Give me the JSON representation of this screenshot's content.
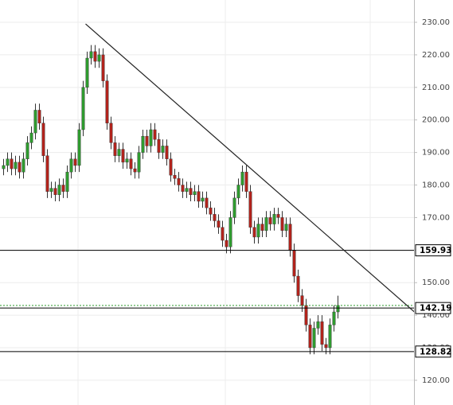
{
  "chart_data": {
    "type": "candlestick",
    "ylim": [
      112.4,
      236.85
    ],
    "yticks": [
      {
        "value": 120,
        "label": "120.00"
      },
      {
        "value": 130,
        "label": "130.00"
      },
      {
        "value": 140,
        "label": "140.00"
      },
      {
        "value": 150,
        "label": "150.00"
      },
      {
        "value": 160,
        "label": "160.00"
      },
      {
        "value": 170,
        "label": "170.00"
      },
      {
        "value": 180,
        "label": "180.00"
      },
      {
        "value": 190,
        "label": "190.00"
      },
      {
        "value": 200,
        "label": "200.00"
      },
      {
        "value": 210,
        "label": "210.00"
      },
      {
        "value": 220,
        "label": "220.00"
      },
      {
        "value": 230,
        "label": "230.00"
      }
    ],
    "grid": true,
    "up_color": "#2f9a2f",
    "down_color": "#b0231c",
    "candles": {
      "open": [
        185,
        186,
        188,
        185,
        187,
        184,
        188,
        193,
        196,
        203,
        199,
        189,
        178,
        179,
        177,
        180,
        178,
        184,
        188,
        186,
        197,
        210,
        219,
        221,
        218,
        220,
        212,
        199,
        193,
        189,
        191,
        187,
        188,
        185,
        184,
        190,
        195,
        192,
        197,
        194,
        190,
        192,
        188,
        183,
        182,
        180,
        178,
        179,
        177,
        178,
        175,
        176,
        173,
        171,
        169,
        167,
        163,
        161,
        170,
        176,
        180,
        184,
        178,
        167,
        164,
        168,
        166,
        170,
        168,
        171,
        170,
        166,
        168,
        160,
        152,
        146,
        143,
        137,
        130,
        136,
        138,
        131,
        130,
        137,
        141
      ],
      "high": [
        188,
        190,
        190,
        189,
        189,
        190,
        195,
        198,
        205,
        205,
        201,
        191,
        181,
        181,
        182,
        182,
        186,
        190,
        190,
        199,
        212,
        221,
        223,
        223,
        222,
        222,
        214,
        201,
        195,
        193,
        193,
        190,
        190,
        187,
        192,
        197,
        197,
        199,
        199,
        196,
        194,
        194,
        190,
        185,
        184,
        182,
        181,
        181,
        180,
        180,
        178,
        178,
        175,
        173,
        171,
        169,
        165,
        172,
        178,
        182,
        186,
        186,
        180,
        169,
        170,
        170,
        172,
        172,
        173,
        173,
        172,
        170,
        170,
        162,
        154,
        148,
        145,
        139,
        138,
        140,
        140,
        133,
        139,
        143,
        146
      ],
      "low": [
        183,
        184,
        183,
        183,
        182,
        182,
        186,
        191,
        194,
        197,
        187,
        176,
        176,
        175,
        175,
        176,
        176,
        182,
        184,
        184,
        195,
        208,
        217,
        216,
        216,
        210,
        197,
        191,
        187,
        187,
        185,
        185,
        183,
        182,
        182,
        188,
        190,
        190,
        192,
        188,
        188,
        186,
        181,
        180,
        178,
        176,
        176,
        175,
        175,
        173,
        173,
        171,
        169,
        167,
        165,
        161,
        159,
        159,
        168,
        174,
        178,
        176,
        165,
        162,
        162,
        164,
        164,
        166,
        166,
        168,
        164,
        164,
        158,
        150,
        144,
        141,
        135,
        128,
        128,
        134,
        129,
        128,
        128,
        135,
        139
      ],
      "close": [
        186,
        188,
        185,
        187,
        184,
        188,
        193,
        196,
        203,
        199,
        189,
        178,
        179,
        177,
        180,
        178,
        184,
        188,
        186,
        197,
        210,
        219,
        221,
        218,
        220,
        212,
        199,
        193,
        189,
        191,
        187,
        188,
        185,
        184,
        190,
        195,
        192,
        197,
        194,
        190,
        192,
        188,
        183,
        182,
        180,
        178,
        179,
        177,
        178,
        175,
        176,
        173,
        171,
        169,
        167,
        163,
        161,
        170,
        176,
        180,
        184,
        178,
        167,
        164,
        168,
        166,
        170,
        168,
        171,
        170,
        166,
        168,
        160,
        152,
        146,
        143,
        137,
        130,
        136,
        138,
        131,
        130,
        137,
        141,
        143
      ]
    },
    "levels": [
      159.93,
      142.19,
      128.82
    ],
    "trendline": {
      "x": [
        20.6,
        103.2
      ],
      "y": [
        229.5,
        141
      ]
    }
  }
}
